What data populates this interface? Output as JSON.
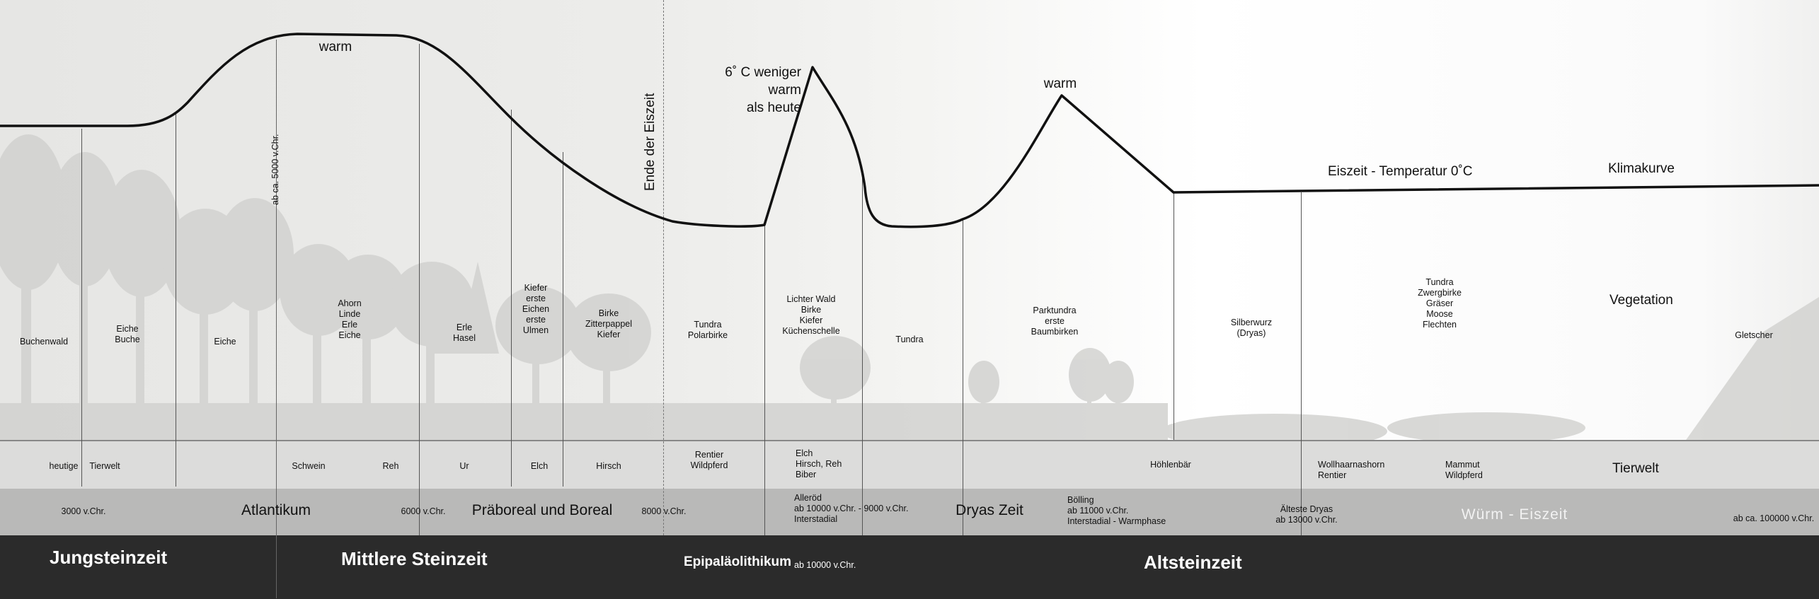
{
  "climate_curve": {
    "label_warm_1": "warm",
    "label_peak": "6˚ C weniger\nwarm\nals heute",
    "label_warm_2": "warm",
    "label_ice_temp": "Eiszeit - Temperatur 0˚C",
    "label_curve": "Klimakurve",
    "marker_end_ice_age": "Ende der Eiszeit",
    "marker_5000": "ab ca. 5000 v.Chr."
  },
  "vegetation": {
    "row_label": "Vegetation",
    "items": [
      "Buchenwald",
      "Eiche\nBuche",
      "Eiche",
      "Ahorn\nLinde\nErle\nEiche",
      "Erle\nHasel",
      "Kiefer\nerste\nEichen\nerste\nUlmen",
      "Birke\nZitterpappel\nKiefer",
      "Tundra\nPolarbirke",
      "Lichter Wald\nBirke\nKiefer\nKüchenschelle",
      "Tundra",
      "Parktundra\nerste\nBaumbirken",
      "Silberwurz\n(Dryas)",
      "Tundra\nZwergbirke\nGräser\nMoose\nFlechten",
      "Gletscher"
    ]
  },
  "fauna": {
    "row_label": "Tierwelt",
    "items": [
      "heutige",
      "Tierwelt",
      "Schwein",
      "Reh",
      "Ur",
      "Elch",
      "Hirsch",
      "Rentier\nWildpferd",
      "Elch\nHirsch, Reh\nBiber",
      "Höhlenbär",
      "Wollhaarnashorn\nRentier",
      "Mammut\nWildpferd"
    ]
  },
  "periods": {
    "items": [
      "3000 v.Chr.",
      "Atlantikum",
      "6000 v.Chr.",
      "Präboreal und Boreal",
      "8000 v.Chr.",
      "Alleröd\nab 10000 v.Chr. - 9000 v.Chr.\nInterstadial",
      "Dryas Zeit",
      "Bölling\nab 11000 v.Chr.\nInterstadial - Warmphase",
      "Älteste Dryas\nab 13000 v.Chr.",
      "Würm - Eiszeit",
      "ab ca. 100000 v.Chr."
    ]
  },
  "eras": {
    "items": [
      "Jungsteinzeit",
      "Mittlere Steinzeit",
      "Epipaläolithikum",
      "ab 10000 v.Chr.",
      "Altsteinzeit"
    ]
  },
  "colors": {
    "era_bar": "#2b2b2b",
    "period_band": "#b9b9b8",
    "fauna_band": "#dcdcdb",
    "curve": "#111111"
  }
}
